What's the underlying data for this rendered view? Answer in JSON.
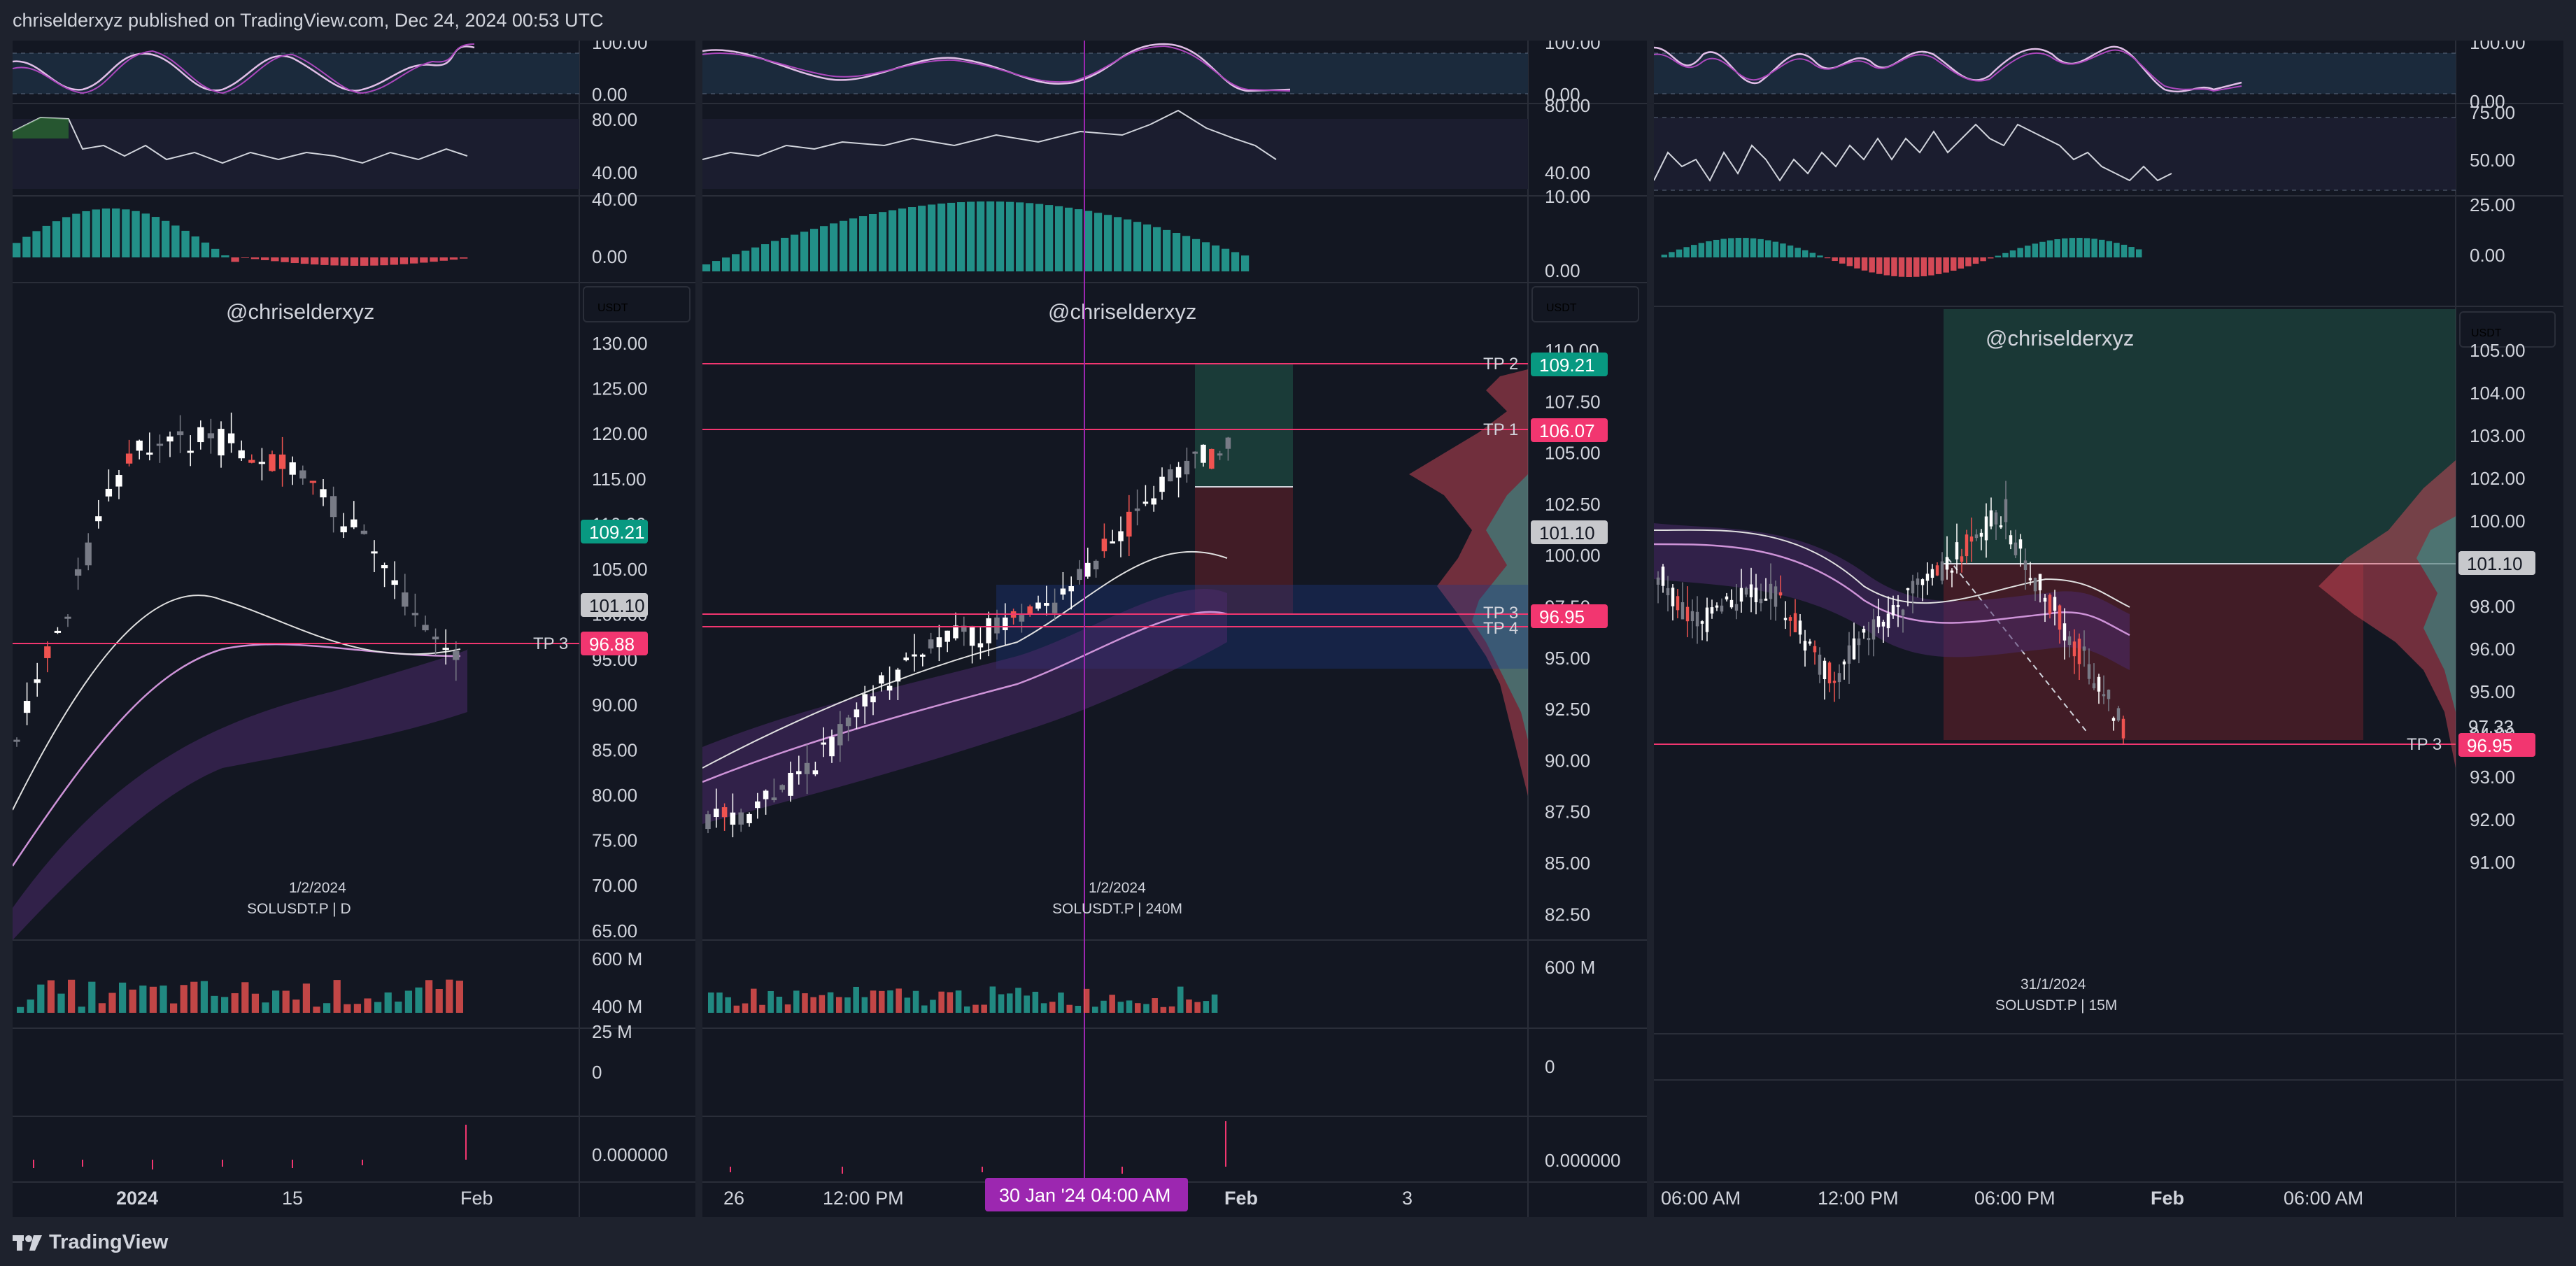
{
  "header": {
    "publish_line": "chriselderxyz published on TradingView.com, Dec 24, 2024 00:53 UTC"
  },
  "footer": {
    "brand": "TradingView"
  },
  "colors": {
    "bg": "#131722",
    "frame": "#1e222d",
    "up": "#26a69a",
    "down": "#f7525f",
    "tp_line": "#f23670",
    "purple": "#7e57c2"
  },
  "panes": [
    {
      "watermark": "@chriselderxyz",
      "currency": "USDT",
      "date_label": "1/2/2024",
      "symbol_label": "SOLUSDT.P | D",
      "stoch_axis": [
        "100.00",
        "0.00"
      ],
      "rsi_axis": [
        "80.00",
        "40.00"
      ],
      "macd_axis": [
        "40.00",
        "0.00"
      ],
      "price_axis": [
        "130.00",
        "125.00",
        "120.00",
        "115.00",
        "110.00",
        "105.00",
        "100.00",
        "95.00",
        "90.00",
        "85.00",
        "80.00",
        "75.00",
        "70.00",
        "65.00"
      ],
      "volume_axis": [
        "600 M",
        "400 M"
      ],
      "oi_axis": [
        "25 M",
        "0"
      ],
      "funding_axis": [
        "0.000000"
      ],
      "time_axis": [
        "2024",
        "15",
        "Feb"
      ],
      "tags": {
        "current": "109.21",
        "mid": "101.10",
        "tp3": "96.88",
        "tp3_label": "TP 3"
      }
    },
    {
      "watermark": "@chriselderxyz",
      "currency": "USDT",
      "date_label": "1/2/2024",
      "symbol_label": "SOLUSDT.P | 240M",
      "stoch_axis": [
        "100.00",
        "0.00"
      ],
      "rsi_axis": [
        "80.00",
        "40.00"
      ],
      "macd_axis": [
        "10.00",
        "0.00"
      ],
      "price_axis": [
        "110.00",
        "107.50",
        "105.00",
        "102.50",
        "100.00",
        "97.50",
        "95.00",
        "92.50",
        "90.00",
        "87.50",
        "85.00",
        "82.50"
      ],
      "volume_axis": [
        "600 M"
      ],
      "oi_axis": [
        "0"
      ],
      "funding_axis": [
        "0.000000"
      ],
      "time_axis": [
        "26",
        "12:00 PM",
        "Feb",
        "3"
      ],
      "crosshair_time": "30 Jan '24  04:00 AM",
      "tags": {
        "tp2_label": "TP 2",
        "tp2": "109.21",
        "tp1_label": "TP 1",
        "tp1": "106.07",
        "mid": "101.10",
        "tp3_label": "TP 3",
        "tp4_label": "TP 4",
        "tp3": "96.95"
      }
    },
    {
      "watermark": "@chriselderxyz",
      "currency": "USDT",
      "date_label": "31/1/2024",
      "symbol_label": "SOLUSDT.P | 15M",
      "stoch_axis": [
        "100.00",
        "0.00"
      ],
      "rsi_axis": [
        "75.00",
        "50.00",
        "25.00"
      ],
      "macd_axis": [
        "0.00"
      ],
      "price_axis": [
        "105.00",
        "104.00",
        "103.00",
        "102.00",
        "100.00",
        "99.00",
        "98.00",
        "96.00",
        "95.00",
        "94.00",
        "93.00",
        "92.00",
        "91.00"
      ],
      "time_axis": [
        "06:00 AM",
        "12:00 PM",
        "06:00 PM",
        "Feb",
        "06:00 AM"
      ],
      "tags": {
        "mid": "101.10",
        "tp3_label": "TP 3",
        "tp3": "96.95",
        "hidden": "97.33"
      }
    }
  ]
}
